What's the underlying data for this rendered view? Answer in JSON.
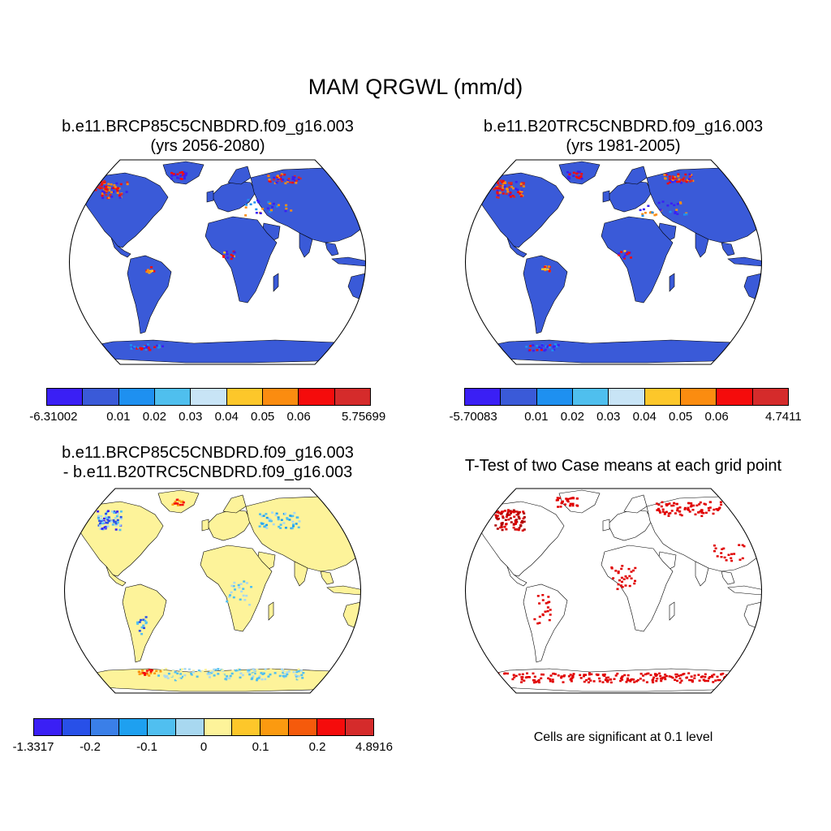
{
  "figure": {
    "title": "MAM QRGWL (mm/d)"
  },
  "panels": [
    {
      "case": "b.e11.BRCP85C5CNBDRD.f09_g16.003",
      "years": "(yrs 2056-2080)",
      "base_color": "#3a5ad8",
      "colorbar": {
        "colors": [
          "#3a1ff5",
          "#3a5ad8",
          "#1e90f0",
          "#4fbfee",
          "#c8e4f6",
          "#fdc72a",
          "#fb8c10",
          "#f50c0c",
          "#d52b2b"
        ],
        "labels": [
          "-6.31002",
          "0.01",
          "0.02",
          "0.03",
          "0.04",
          "0.05",
          "0.06",
          "5.75699"
        ]
      }
    },
    {
      "case": "b.e11.B20TRC5CNBDRD.f09_g16.003",
      "years": "(yrs 1981-2005)",
      "base_color": "#3a5ad8",
      "colorbar": {
        "colors": [
          "#3a1ff5",
          "#3a5ad8",
          "#1e90f0",
          "#4fbfee",
          "#c8e4f6",
          "#fdc72a",
          "#fb8c10",
          "#f50c0c",
          "#d52b2b"
        ],
        "labels": [
          "-5.70083",
          "0.01",
          "0.02",
          "0.03",
          "0.04",
          "0.05",
          "0.06",
          "4.7411"
        ]
      }
    },
    {
      "case_a": "b.e11.BRCP85C5CNBDRD.f09_g16.003",
      "case_b": "- b.e11.B20TRC5CNBDRD.f09_g16.003",
      "base_color": "#fdf39a",
      "colorbar": {
        "colors": [
          "#3a1ff5",
          "#2850e8",
          "#3a7fe8",
          "#1ea0f0",
          "#50bff0",
          "#a8d8f0",
          "#fdf39a",
          "#fdc72a",
          "#fb9a10",
          "#f55a0c",
          "#f50c0c",
          "#d52b2b"
        ],
        "labels": [
          "-1.3317",
          "-0.2",
          "-0.1",
          "0",
          "0.1",
          "0.2",
          "4.8916"
        ]
      }
    },
    {
      "title": "T-Test of two Case means at each grid point",
      "note": "Cells are significant at 0.1 level",
      "base_color": "#ffffff",
      "signif_color": "#e00000"
    }
  ]
}
